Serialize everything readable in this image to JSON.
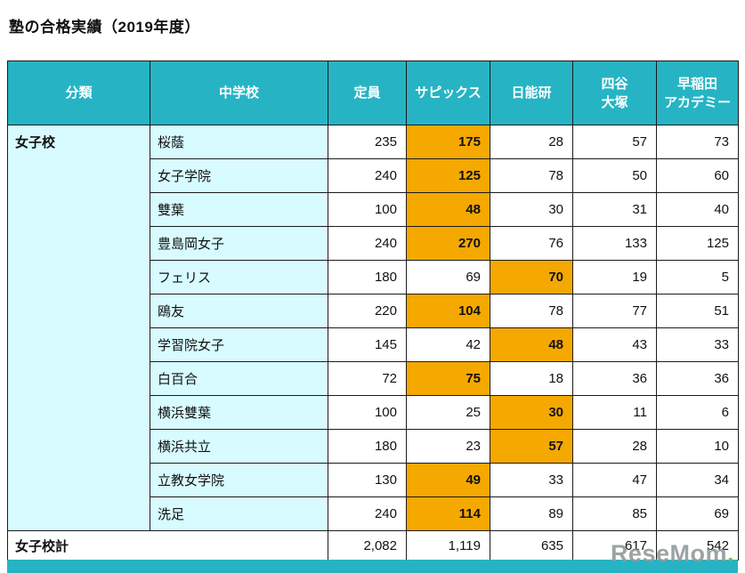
{
  "page_title": "塾の合格実績（2019年度）",
  "watermark": {
    "text": "ReseMom",
    "dot": "."
  },
  "colors": {
    "header_teal": "#26b4c4",
    "light_cyan": "#d8fbff",
    "highlight_orange": "#f5a800",
    "border": "#1b1b1b",
    "header_text": "#ffffff",
    "watermark_gray": "#8e9b9b",
    "watermark_dot_green": "#7cb342"
  },
  "chart_data": {
    "type": "table",
    "title": "塾の合格実績（2019年度）",
    "headers": {
      "category": "分類",
      "school": "中学校",
      "capacity": "定員",
      "sapix": "サピックス",
      "nichinoken": "日能研",
      "yotsuya": [
        "四谷",
        "大塚"
      ],
      "waseda": [
        "早稲田",
        "アカデミー"
      ]
    },
    "category_group": "女子校",
    "rows": [
      {
        "school": "桜蔭",
        "capacity": "235",
        "sapix": "175",
        "nichinoken": "28",
        "yotsuya": "57",
        "waseda": "73",
        "highlight": "sapix"
      },
      {
        "school": "女子学院",
        "capacity": "240",
        "sapix": "125",
        "nichinoken": "78",
        "yotsuya": "50",
        "waseda": "60",
        "highlight": "sapix"
      },
      {
        "school": "雙葉",
        "capacity": "100",
        "sapix": "48",
        "nichinoken": "30",
        "yotsuya": "31",
        "waseda": "40",
        "highlight": "sapix"
      },
      {
        "school": "豊島岡女子",
        "capacity": "240",
        "sapix": "270",
        "nichinoken": "76",
        "yotsuya": "133",
        "waseda": "125",
        "highlight": "sapix"
      },
      {
        "school": "フェリス",
        "capacity": "180",
        "sapix": "69",
        "nichinoken": "70",
        "yotsuya": "19",
        "waseda": "5",
        "highlight": "nichinoken"
      },
      {
        "school": "鴎友",
        "capacity": "220",
        "sapix": "104",
        "nichinoken": "78",
        "yotsuya": "77",
        "waseda": "51",
        "highlight": "sapix"
      },
      {
        "school": "学習院女子",
        "capacity": "145",
        "sapix": "42",
        "nichinoken": "48",
        "yotsuya": "43",
        "waseda": "33",
        "highlight": "nichinoken"
      },
      {
        "school": "白百合",
        "capacity": "72",
        "sapix": "75",
        "nichinoken": "18",
        "yotsuya": "36",
        "waseda": "36",
        "highlight": "sapix"
      },
      {
        "school": "横浜雙葉",
        "capacity": "100",
        "sapix": "25",
        "nichinoken": "30",
        "yotsuya": "11",
        "waseda": "6",
        "highlight": "nichinoken"
      },
      {
        "school": "横浜共立",
        "capacity": "180",
        "sapix": "23",
        "nichinoken": "57",
        "yotsuya": "28",
        "waseda": "10",
        "highlight": "nichinoken"
      },
      {
        "school": "立教女学院",
        "capacity": "130",
        "sapix": "49",
        "nichinoken": "33",
        "yotsuya": "47",
        "waseda": "34",
        "highlight": "sapix"
      },
      {
        "school": "洗足",
        "capacity": "240",
        "sapix": "114",
        "nichinoken": "89",
        "yotsuya": "85",
        "waseda": "69",
        "highlight": "sapix"
      }
    ],
    "total": {
      "label": "女子校計",
      "capacity": "2,082",
      "sapix": "1,119",
      "nichinoken": "635",
      "yotsuya": "617",
      "waseda": "542"
    }
  }
}
